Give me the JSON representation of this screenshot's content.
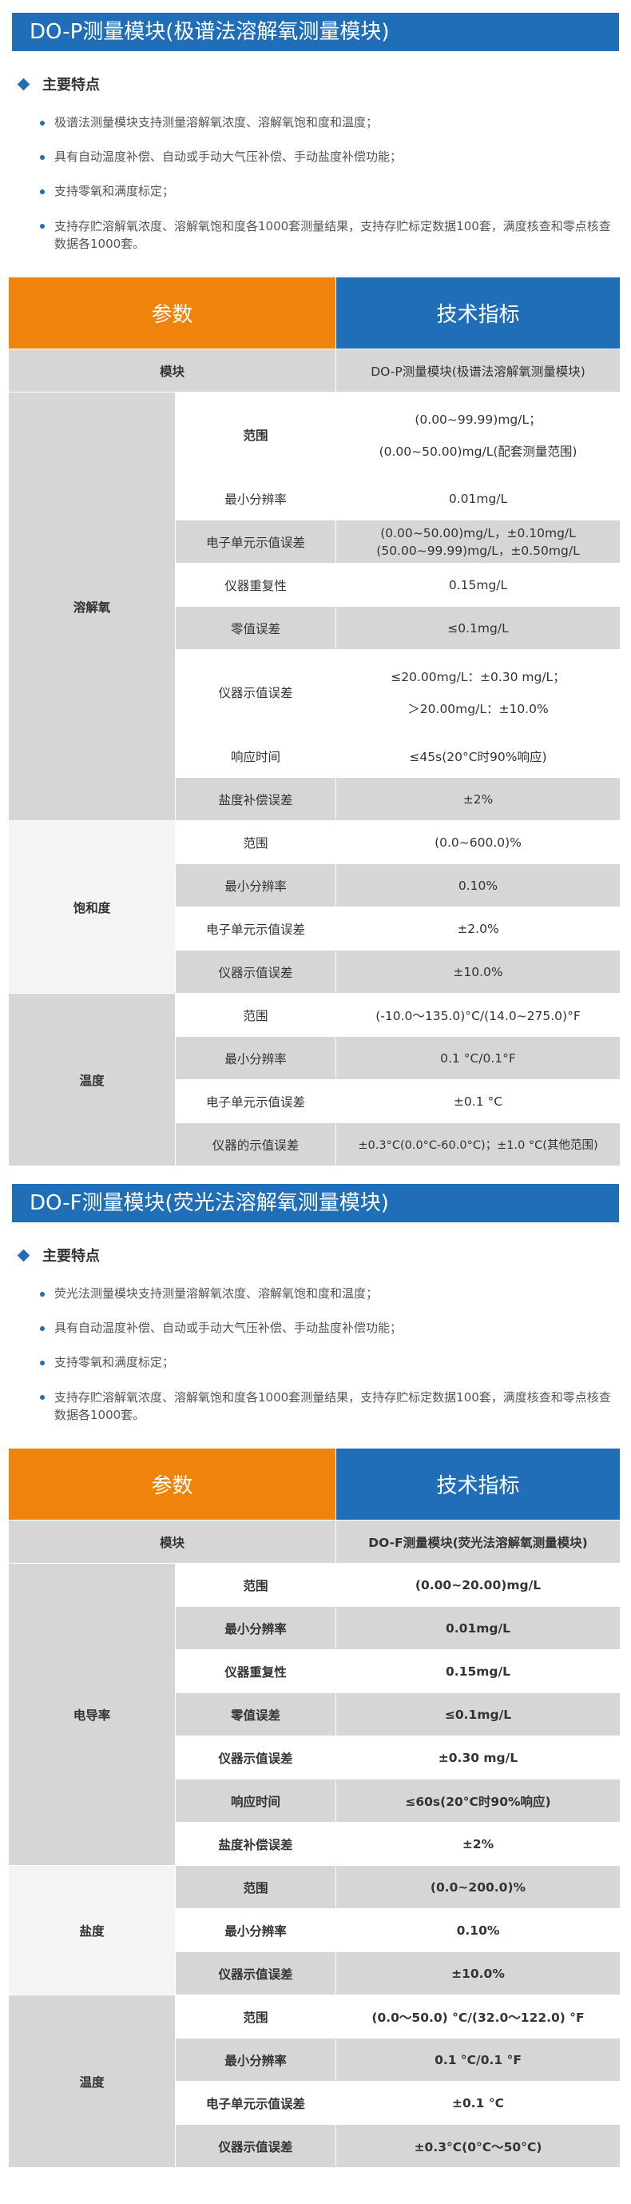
{
  "sections": [
    {
      "title": "DO-P测量模块(极谱法溶解氧测量模块)",
      "features_heading": "主要特点",
      "features": [
        "极谱法测量模块支持测量溶解氧浓度、溶解氧饱和度和温度；",
        "具有自动温度补偿、自动或手动大气压补偿、手动盐度补偿功能；",
        "支持零氧和满度标定；",
        "支持存贮溶解氧浓度、溶解氧饱和度各1000套测量结果，支持存贮标定数据100套，满度核查和零点核查数据各1000套。"
      ],
      "table": {
        "col_param": "参数",
        "col_spec": "技术指标",
        "module_label": "模块",
        "module_value": "DO-P测量模块(极谱法溶解氧测量模块)",
        "groups": [
          {
            "name": "溶解氧",
            "rows": [
              {
                "label": "范围",
                "value": "(0.00~99.99)mg/L；",
                "value2": "(0.00~50.00)mg/L(配套测量范围)"
              },
              {
                "label": "最小分辨率",
                "value": "0.01mg/L"
              },
              {
                "label": "电子单元示值误差",
                "value": "(0.00~50.00)mg/L，±0.10mg/L",
                "value2": "(50.00~99.99)mg/L，±0.50mg/L"
              },
              {
                "label": "仪器重复性",
                "value": "0.15mg/L"
              },
              {
                "label": "零值误差",
                "value": "≤0.1mg/L"
              },
              {
                "label": "仪器示值误差",
                "value": "≤20.00mg/L：±0.30 mg/L；",
                "value2": "＞20.00mg/L：±10.0%"
              },
              {
                "label": "响应时间",
                "value": "≤45s(20°C时90%响应)"
              },
              {
                "label": "盐度补偿误差",
                "value": "±2%"
              }
            ]
          },
          {
            "name": "饱和度",
            "rows": [
              {
                "label": "范围",
                "value": "(0.0~600.0)%"
              },
              {
                "label": "最小分辨率",
                "value": "0.10%"
              },
              {
                "label": "电子单元示值误差",
                "value": "±2.0%"
              },
              {
                "label": "仪器示值误差",
                "value": "±10.0%"
              }
            ]
          },
          {
            "name": "温度",
            "rows": [
              {
                "label": "范围",
                "value": "(-10.0～135.0)°C/(14.0~275.0)°F"
              },
              {
                "label": "最小分辨率",
                "value": "0.1 °C/0.1°F"
              },
              {
                "label": "电子单元示值误差",
                "value": "±0.1 °C"
              },
              {
                "label": "仪器的示值误差",
                "value": "±0.3°C(0.0°C-60.0°C)；±1.0 °C(其他范围)"
              }
            ]
          }
        ]
      }
    },
    {
      "title": "DO-F测量模块(荧光法溶解氧测量模块)",
      "features_heading": "主要特点",
      "features": [
        "荧光法测量模块支持测量溶解氧浓度、溶解氧饱和度和温度；",
        "具有自动温度补偿、自动或手动大气压补偿、手动盐度补偿功能；",
        "支持零氧和满度标定；",
        "支持存贮溶解氧浓度、溶解氧饱和度各1000套测量结果，支持存贮标定数据100套，满度核查和零点核查数据各1000套。"
      ],
      "table": {
        "col_param": "参数",
        "col_spec": "技术指标",
        "module_label": "模块",
        "module_value": "DO-F测量模块(荧光法溶解氧测量模块)",
        "groups": [
          {
            "name": "电导率",
            "rows": [
              {
                "label": "范围",
                "value": "(0.00~20.00)mg/L"
              },
              {
                "label": "最小分辨率",
                "value": "0.01mg/L"
              },
              {
                "label": "仪器重复性",
                "value": "0.15mg/L"
              },
              {
                "label": "零值误差",
                "value": "≤0.1mg/L"
              },
              {
                "label": "仪器示值误差",
                "value": "±0.30 mg/L"
              },
              {
                "label": "响应时间",
                "value": "≤60s(20°C时90%响应)"
              },
              {
                "label": "盐度补偿误差",
                "value": "±2%"
              }
            ]
          },
          {
            "name": "盐度",
            "rows": [
              {
                "label": "范围",
                "value": "(0.0~200.0)%"
              },
              {
                "label": "最小分辨率",
                "value": "0.10%"
              },
              {
                "label": "仪器示值误差",
                "value": "±10.0%"
              }
            ]
          },
          {
            "name": "温度",
            "rows": [
              {
                "label": "范围",
                "value": "(0.0～50.0) °C/(32.0～122.0) °F"
              },
              {
                "label": "最小分辨率",
                "value": "0.1 °C/0.1 °F"
              },
              {
                "label": "电子单元示值误差",
                "value": "±0.1 °C"
              },
              {
                "label": "仪器示值误差",
                "value": "±0.3°C(0°C～50°C)"
              }
            ]
          }
        ]
      }
    }
  ]
}
